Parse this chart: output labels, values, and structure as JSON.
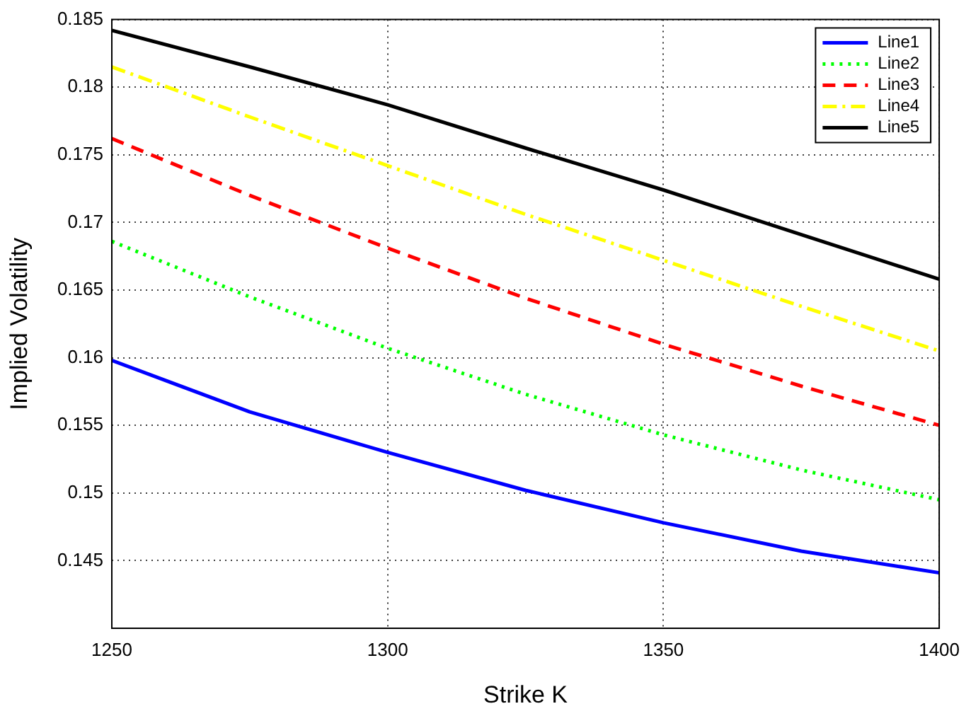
{
  "chart_data": {
    "type": "line",
    "xlabel": "Strike K",
    "ylabel": "Implied Volatility",
    "x": [
      1250,
      1275,
      1300,
      1325,
      1350,
      1375,
      1400
    ],
    "series": [
      {
        "name": "Line1",
        "color": "#0000ff",
        "line_style": "solid",
        "values": [
          0.1598,
          0.156,
          0.153,
          0.1502,
          0.1478,
          0.1457,
          0.1441
        ]
      },
      {
        "name": "Line2",
        "color": "#00ff00",
        "line_style": "dotted",
        "values": [
          0.1686,
          0.1645,
          0.1607,
          0.1573,
          0.1543,
          0.1517,
          0.1495
        ]
      },
      {
        "name": "Line3",
        "color": "#ff0000",
        "line_style": "dashed",
        "values": [
          0.1762,
          0.172,
          0.1681,
          0.1644,
          0.161,
          0.1579,
          0.155
        ]
      },
      {
        "name": "Line4",
        "color": "#ffff00",
        "line_style": "dashdot",
        "values": [
          0.1815,
          0.1778,
          0.1742,
          0.1706,
          0.1672,
          0.1638,
          0.1605
        ]
      },
      {
        "name": "Line5",
        "color": "#000000",
        "line_style": "solid",
        "values": [
          0.1842,
          0.1815,
          0.1787,
          0.1755,
          0.1724,
          0.1691,
          0.1658
        ]
      }
    ],
    "xlim": [
      1250,
      1400
    ],
    "xticks": [
      1250,
      1300,
      1350,
      1400
    ],
    "ylim": [
      0.14,
      0.185
    ],
    "yticks": [
      0.145,
      0.15,
      0.155,
      0.16,
      0.165,
      0.17,
      0.175,
      0.18,
      0.185
    ],
    "grid": true,
    "legend": "top right",
    "marker": "none"
  }
}
